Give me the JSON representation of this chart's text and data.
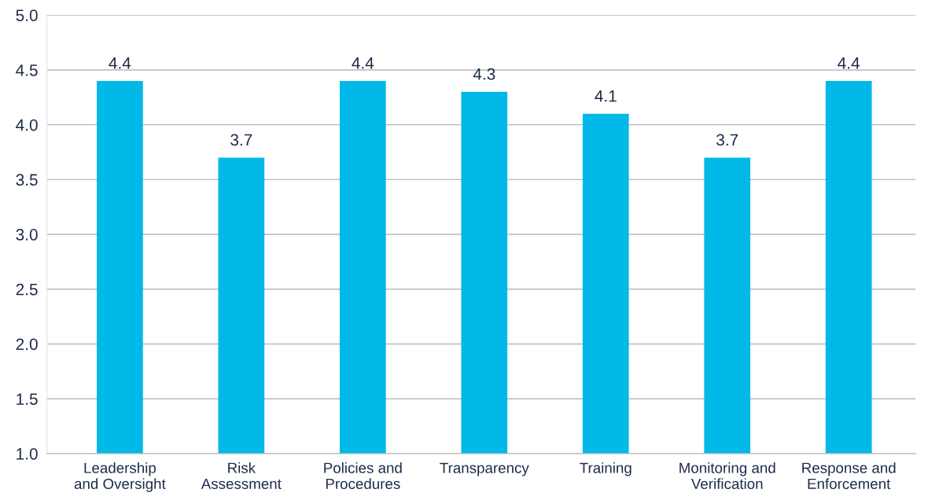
{
  "chart_data": {
    "type": "bar",
    "categories": [
      "Leadership\nand Oversight",
      "Risk\nAssessment",
      "Policies and\nProcedures",
      "Transparency",
      "Training",
      "Monitoring and\nVerification",
      "Response and\nEnforcement"
    ],
    "values": [
      4.4,
      3.7,
      4.4,
      4.3,
      4.1,
      3.7,
      4.4
    ],
    "color": "#00b9e8",
    "ylim": [
      1.0,
      5.0
    ],
    "yticks": [
      {
        "value": 1.0,
        "label": "1.0"
      },
      {
        "value": 1.5,
        "label": "1.5"
      },
      {
        "value": 2.0,
        "label": "2.0"
      },
      {
        "value": 2.5,
        "label": "2.5"
      },
      {
        "value": 3.0,
        "label": "3.0"
      },
      {
        "value": 3.5,
        "label": "3.5"
      },
      {
        "value": 4.0,
        "label": "4.0"
      },
      {
        "value": 4.5,
        "label": "4.5"
      },
      {
        "value": 5.0,
        "label": "5.0"
      }
    ],
    "grid": "y",
    "data_labels": true
  }
}
